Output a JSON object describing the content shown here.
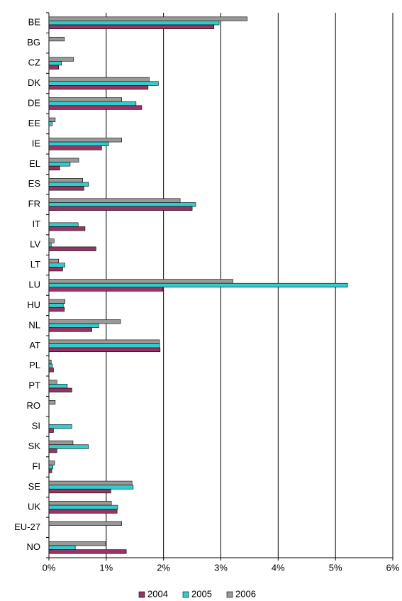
{
  "chart_data": {
    "type": "hbar",
    "categories": [
      "BE",
      "BG",
      "CZ",
      "DK",
      "DE",
      "EE",
      "IE",
      "EL",
      "ES",
      "FR",
      "IT",
      "LV",
      "LT",
      "LU",
      "HU",
      "NL",
      "AT",
      "PL",
      "PT",
      "RO",
      "SI",
      "SK",
      "FI",
      "SE",
      "UK",
      "EU-27",
      "NO"
    ],
    "series": [
      {
        "name": "2004",
        "color": "#993366",
        "values": [
          2.88,
          null,
          0.17,
          1.73,
          1.62,
          null,
          0.92,
          0.19,
          0.61,
          2.5,
          0.63,
          0.82,
          0.24,
          1.99,
          0.27,
          0.75,
          1.94,
          0.08,
          0.4,
          null,
          0.08,
          0.14,
          0.05,
          1.08,
          1.19,
          null,
          1.35
        ]
      },
      {
        "name": "2005",
        "color": "#33cccc",
        "values": [
          2.97,
          null,
          0.22,
          1.91,
          1.52,
          0.06,
          1.04,
          0.37,
          0.69,
          2.56,
          0.51,
          0.04,
          0.28,
          5.21,
          0.25,
          0.87,
          1.93,
          0.06,
          0.32,
          null,
          0.4,
          0.69,
          0.07,
          1.47,
          1.2,
          null,
          0.46
        ]
      },
      {
        "name": "2006",
        "color": "#999999",
        "values": [
          3.46,
          0.27,
          0.43,
          1.75,
          1.27,
          0.11,
          1.27,
          0.52,
          0.59,
          2.29,
          null,
          0.09,
          0.17,
          3.21,
          0.28,
          1.25,
          1.93,
          0.04,
          0.14,
          0.11,
          null,
          0.42,
          0.1,
          1.45,
          1.09,
          1.27,
          0.99
        ]
      }
    ],
    "xlim": [
      0,
      6
    ],
    "xticks": [
      {
        "value": 0,
        "label": "0%"
      },
      {
        "value": 1,
        "label": "1%"
      },
      {
        "value": 2,
        "label": "2%"
      },
      {
        "value": 3,
        "label": "3%"
      },
      {
        "value": 4,
        "label": "4%"
      },
      {
        "value": 5,
        "label": "5%"
      },
      {
        "value": 6,
        "label": "6%"
      }
    ],
    "grid": true,
    "legend": "bottom"
  }
}
